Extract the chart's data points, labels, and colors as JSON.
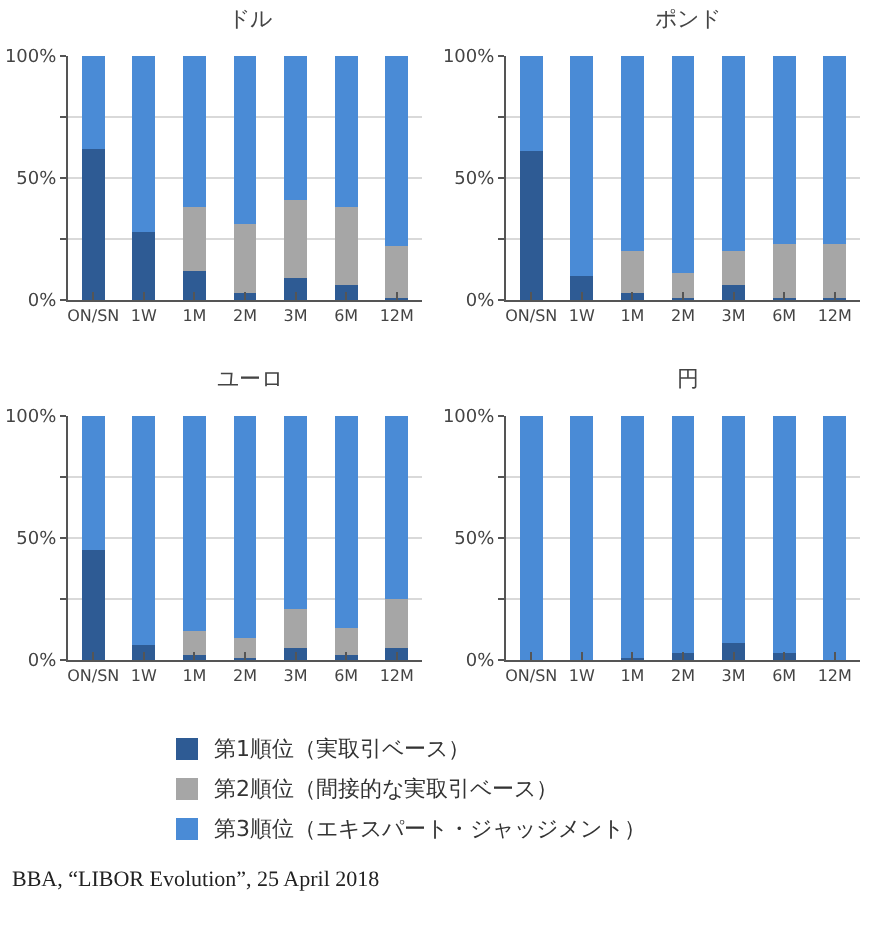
{
  "chart_data": [
    {
      "type": "bar",
      "title": "ドル",
      "stacked": true,
      "categories": [
        "ON/SN",
        "1W",
        "1M",
        "2M",
        "3M",
        "6M",
        "12M"
      ],
      "ylim": [
        0,
        100
      ],
      "yticks": [
        {
          "value": 0,
          "label": "0%"
        },
        {
          "value": 25,
          "label": null
        },
        {
          "value": 50,
          "label": "50%"
        },
        {
          "value": 75,
          "label": null
        },
        {
          "value": 100,
          "label": "100%"
        }
      ],
      "grid": "y",
      "legend": "bottom",
      "series": [
        {
          "name": "第1順位（実取引ベース）",
          "color": "#2e5b94",
          "values": [
            62,
            28,
            12,
            3,
            9,
            6,
            1
          ]
        },
        {
          "name": "第2順位（間接的な実取引ベース）",
          "color": "#a6a6a6",
          "values": [
            0,
            0,
            26,
            28,
            32,
            32,
            21
          ]
        },
        {
          "name": "第3順位（エキスパート・ジャッジメント）",
          "color": "#4a8bd6",
          "values": [
            38,
            72,
            62,
            69,
            59,
            62,
            78
          ]
        }
      ]
    },
    {
      "type": "bar",
      "title": "ポンド",
      "stacked": true,
      "categories": [
        "ON/SN",
        "1W",
        "1M",
        "2M",
        "3M",
        "6M",
        "12M"
      ],
      "ylim": [
        0,
        100
      ],
      "yticks": [
        {
          "value": 0,
          "label": "0%"
        },
        {
          "value": 25,
          "label": null
        },
        {
          "value": 50,
          "label": "50%"
        },
        {
          "value": 75,
          "label": null
        },
        {
          "value": 100,
          "label": "100%"
        }
      ],
      "grid": "y",
      "series": [
        {
          "color": "#2e5b94",
          "values": [
            61,
            10,
            3,
            1,
            6,
            1,
            1
          ]
        },
        {
          "color": "#a6a6a6",
          "values": [
            0,
            0,
            17,
            10,
            14,
            22,
            22
          ]
        },
        {
          "color": "#4a8bd6",
          "values": [
            39,
            90,
            80,
            89,
            80,
            77,
            77
          ]
        }
      ]
    },
    {
      "type": "bar",
      "title": "ユーロ",
      "stacked": true,
      "categories": [
        "ON/SN",
        "1W",
        "1M",
        "2M",
        "3M",
        "6M",
        "12M"
      ],
      "ylim": [
        0,
        100
      ],
      "yticks": [
        {
          "value": 0,
          "label": "0%"
        },
        {
          "value": 25,
          "label": null
        },
        {
          "value": 50,
          "label": "50%"
        },
        {
          "value": 75,
          "label": null
        },
        {
          "value": 100,
          "label": "100%"
        }
      ],
      "grid": "y",
      "series": [
        {
          "color": "#2e5b94",
          "values": [
            45,
            6,
            2,
            1,
            5,
            2,
            5
          ]
        },
        {
          "color": "#a6a6a6",
          "values": [
            0,
            0,
            10,
            8,
            16,
            11,
            20
          ]
        },
        {
          "color": "#4a8bd6",
          "values": [
            55,
            94,
            88,
            91,
            79,
            87,
            75
          ]
        }
      ]
    },
    {
      "type": "bar",
      "title": "円",
      "stacked": true,
      "categories": [
        "ON/SN",
        "1W",
        "1M",
        "2M",
        "3M",
        "6M",
        "12M"
      ],
      "ylim": [
        0,
        100
      ],
      "yticks": [
        {
          "value": 0,
          "label": "0%"
        },
        {
          "value": 25,
          "label": null
        },
        {
          "value": 50,
          "label": "50%"
        },
        {
          "value": 75,
          "label": null
        },
        {
          "value": 100,
          "label": "100%"
        }
      ],
      "grid": "y",
      "annotations": [
        "BBA, “LIBOR Evolution”, 25 April 2018"
      ],
      "series": [
        {
          "color": "#2e5b94",
          "values": [
            0,
            0,
            1,
            3,
            7,
            3,
            0
          ]
        },
        {
          "color": "#a6a6a6",
          "values": [
            0,
            0,
            0,
            0,
            0,
            0,
            0
          ]
        },
        {
          "color": "#4a8bd6",
          "values": [
            100,
            100,
            99,
            97,
            93,
            97,
            100
          ]
        }
      ]
    }
  ]
}
